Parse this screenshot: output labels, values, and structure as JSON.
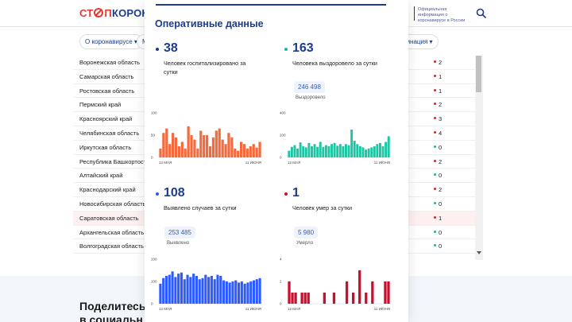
{
  "header": {
    "logo_part1": "СТ",
    "logo_part2": "П",
    "logo_part3": "КОРОНАВ",
    "info_text": "Официальная информация о коронавирусе в России"
  },
  "nav": {
    "item1": "О коронавирусе ▾",
    "item2": "М",
    "item3": "цинация ▾"
  },
  "regions": [
    {
      "name": "Воронежская область",
      "delta": "2",
      "color": "#d02a2a"
    },
    {
      "name": "Самарская область",
      "delta": "1",
      "color": "#d02a2a"
    },
    {
      "name": "Ростовская область",
      "delta": "1",
      "color": "#d02a2a"
    },
    {
      "name": "Пермский край",
      "delta": "2",
      "color": "#d02a2a"
    },
    {
      "name": "Красноярский край",
      "delta": "3",
      "color": "#d02a2a"
    },
    {
      "name": "Челябинская область",
      "delta": "4",
      "color": "#d02a2a"
    },
    {
      "name": "Иркутская область",
      "delta": "0",
      "color": "#1db59b"
    },
    {
      "name": "Республика Башкортоста",
      "delta": "2",
      "color": "#d02a2a"
    },
    {
      "name": "Алтайский край",
      "delta": "0",
      "color": "#1db59b"
    },
    {
      "name": "Краснодарский край",
      "delta": "2",
      "color": "#d02a2a"
    },
    {
      "name": "Новосибирская область",
      "delta": "0",
      "color": "#1db59b"
    },
    {
      "name": "Саратовская область",
      "delta": "1",
      "color": "#d02a2a"
    },
    {
      "name": "Архангельская область",
      "delta": "0",
      "color": "#1db59b"
    },
    {
      "name": "Волгоградская область",
      "delta": "0",
      "color": "#1db59b"
    }
  ],
  "highlighted_region_index": 11,
  "share": {
    "title": "Поделитесь в социальн"
  },
  "modal": {
    "title": "Оперативные данные",
    "stats": [
      {
        "value": "38",
        "desc": "Человек госпитализировано за сутки",
        "dot_color": "#1d3b8f"
      },
      {
        "value": "163",
        "desc": "Человека выздоровело за сутки",
        "dot_color": "#1db59b",
        "total": "246 498",
        "total_label": "Выздоровело"
      },
      {
        "value": "108",
        "desc": "Выявлено случаев за сутки",
        "dot_color": "#2d5be3",
        "total": "253 485",
        "total_label": "Выявлено"
      },
      {
        "value": "1",
        "desc": "Человек умер за сутки",
        "dot_color": "#c8102e",
        "total": "5 980",
        "total_label": "Умерло"
      }
    ]
  },
  "chart_data": [
    {
      "type": "bar",
      "color": "#f26a3d",
      "ylim": [
        0,
        100
      ],
      "yticks": [
        "100",
        "50",
        "0"
      ],
      "xlabel_start": "12 МАЯ",
      "xlabel_end": "11 ИЮНЯ",
      "values": [
        20,
        55,
        65,
        30,
        55,
        45,
        25,
        35,
        20,
        70,
        50,
        40,
        20,
        60,
        50,
        50,
        25,
        45,
        60,
        65,
        40,
        30,
        55,
        45,
        20,
        15,
        35,
        30,
        20,
        25,
        30,
        22,
        35
      ]
    },
    {
      "type": "bar",
      "color": "#1cc6a4",
      "ylim": [
        0,
        400
      ],
      "yticks": [
        "400",
        "200",
        "0"
      ],
      "xlabel_start": "12 МАЯ",
      "xlabel_end": "11 ИЮНЯ",
      "values": [
        60,
        95,
        110,
        80,
        135,
        100,
        90,
        130,
        100,
        120,
        95,
        140,
        95,
        110,
        100,
        120,
        130,
        105,
        120,
        100,
        120,
        110,
        250,
        150,
        120,
        100,
        90,
        70,
        80,
        90,
        100,
        120,
        130,
        100,
        140,
        190
      ]
    },
    {
      "type": "bar",
      "color": "#2d5bff",
      "ylim": [
        0,
        200
      ],
      "yticks": [
        "200",
        "100",
        "0"
      ],
      "xlabel_start": "12 МАЯ",
      "xlabel_end": "11 ИЮНЯ",
      "values": [
        90,
        115,
        125,
        130,
        145,
        120,
        135,
        140,
        110,
        130,
        120,
        135,
        125,
        110,
        115,
        130,
        120,
        125,
        110,
        130,
        125,
        105,
        100,
        95,
        100,
        105,
        95,
        100,
        90,
        95,
        100,
        105,
        110,
        115
      ]
    },
    {
      "type": "bar",
      "color": "#c8102e",
      "ylim": [
        0,
        4
      ],
      "yticks": [
        "4",
        "2",
        "0"
      ],
      "xlabel_start": "12 МАЯ",
      "xlabel_end": "11 ИЮНЯ",
      "values": [
        2,
        1,
        1,
        0,
        1,
        1,
        1,
        0,
        0,
        0,
        0,
        1,
        0,
        0,
        1,
        0,
        0,
        0,
        2,
        0,
        1,
        0,
        3,
        0,
        1,
        0,
        2,
        0,
        0,
        0,
        2,
        2
      ]
    }
  ]
}
